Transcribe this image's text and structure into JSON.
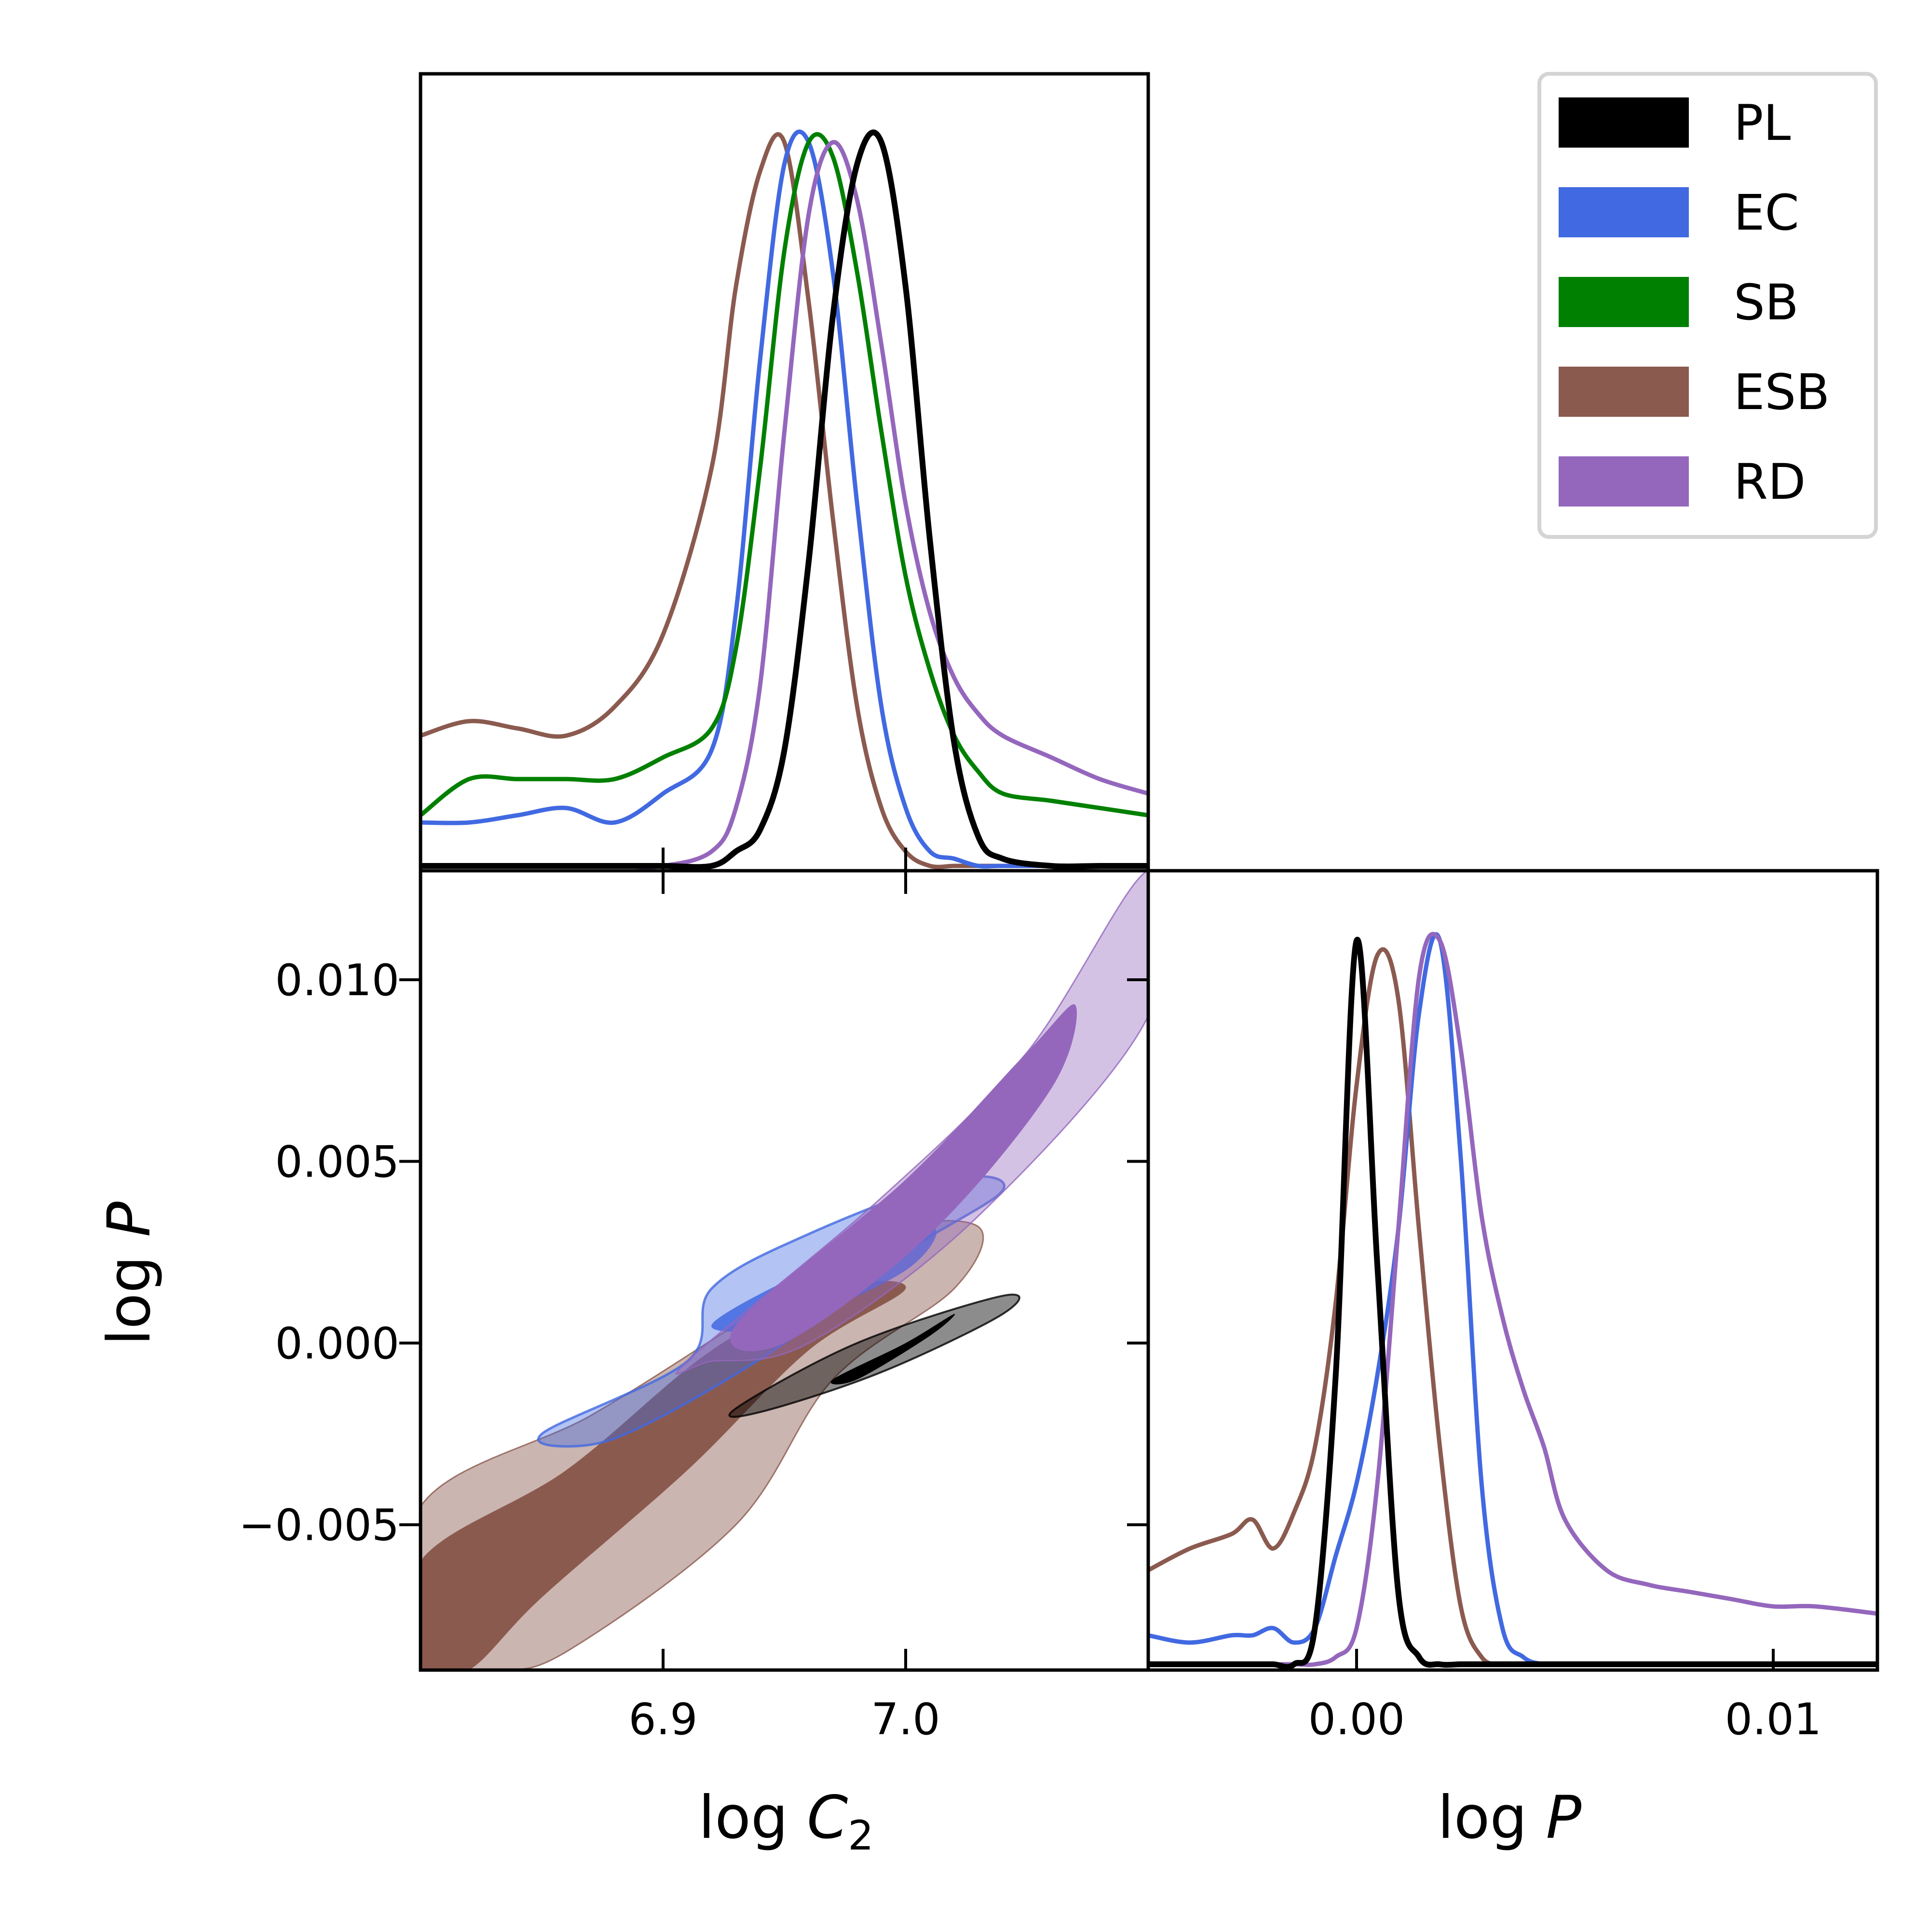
{
  "chart_data": {
    "type": "corner",
    "series": [
      {
        "name": "PL",
        "color": "#000000"
      },
      {
        "name": "EC",
        "color": "#4169e1"
      },
      {
        "name": "SB",
        "color": "#008000"
      },
      {
        "name": "ESB",
        "color": "#8b5a4f"
      },
      {
        "name": "RD",
        "color": "#9467bd"
      }
    ],
    "legend": {
      "placement": "top-right"
    },
    "panels": {
      "logC2_marginal": {
        "x_range": [
          6.8,
          7.1
        ],
        "x_ticks": [
          6.9,
          7.0
        ],
        "density_grid": [
          6.8,
          6.82,
          6.84,
          6.86,
          6.88,
          6.9,
          6.92,
          6.93,
          6.94,
          6.95,
          6.96,
          6.97,
          6.98,
          6.99,
          7.0,
          7.01,
          7.02,
          7.03,
          7.04,
          7.06,
          7.08,
          7.1
        ],
        "densities": {
          "PL": [
            0,
            0,
            0,
            0,
            0,
            0,
            0.0,
            0.02,
            0.05,
            0.16,
            0.42,
            0.76,
            0.97,
            1.0,
            0.8,
            0.45,
            0.17,
            0.04,
            0.01,
            0,
            0,
            0
          ],
          "EC": [
            0.06,
            0.06,
            0.07,
            0.08,
            0.06,
            0.1,
            0.16,
            0.35,
            0.7,
            0.97,
            1.0,
            0.82,
            0.5,
            0.22,
            0.08,
            0.02,
            0.01,
            0,
            0,
            0,
            0,
            0
          ],
          "SB": [
            0.07,
            0.12,
            0.12,
            0.12,
            0.12,
            0.15,
            0.19,
            0.3,
            0.55,
            0.85,
            1.0,
            0.98,
            0.82,
            0.6,
            0.4,
            0.27,
            0.18,
            0.13,
            0.1,
            0.09,
            0.08,
            0.07
          ],
          "ESB": [
            0.18,
            0.2,
            0.19,
            0.18,
            0.22,
            0.32,
            0.55,
            0.8,
            0.96,
            1.0,
            0.78,
            0.48,
            0.22,
            0.08,
            0.02,
            0.0,
            0,
            0,
            0,
            0,
            0,
            0
          ],
          "RD": [
            0,
            0,
            0,
            0,
            0,
            0.0,
            0.02,
            0.08,
            0.25,
            0.6,
            0.9,
            1.0,
            0.92,
            0.72,
            0.5,
            0.35,
            0.26,
            0.21,
            0.18,
            0.15,
            0.12,
            0.1
          ]
        }
      },
      "logP_marginal": {
        "x_range": [
          -0.005,
          0.0125
        ],
        "x_ticks": [
          0.0,
          0.01
        ],
        "x_tick_labels": [
          "0.00",
          "0.01"
        ],
        "xlabel": "log P",
        "density_grid": [
          -0.005,
          -0.004,
          -0.003,
          -0.0025,
          -0.002,
          -0.0015,
          -0.001,
          -0.0005,
          0.0,
          0.0005,
          0.001,
          0.0015,
          0.002,
          0.0025,
          0.003,
          0.0035,
          0.004,
          0.0045,
          0.005,
          0.006,
          0.007,
          0.008,
          0.009,
          0.01,
          0.011,
          0.0125
        ],
        "densities": {
          "PL": [
            0,
            0,
            0,
            0,
            0,
            0,
            0.05,
            0.4,
            1.0,
            0.55,
            0.1,
            0.01,
            0,
            0,
            0,
            0,
            0,
            0,
            0,
            0,
            0,
            0,
            0,
            0,
            0,
            0
          ],
          "EC": [
            0.04,
            0.03,
            0.04,
            0.04,
            0.05,
            0.03,
            0.05,
            0.15,
            0.25,
            0.4,
            0.6,
            0.9,
            1.0,
            0.7,
            0.25,
            0.05,
            0.01,
            0,
            0,
            0,
            0,
            0,
            0,
            0,
            0,
            0
          ],
          "ESB": [
            0.13,
            0.16,
            0.18,
            0.2,
            0.16,
            0.21,
            0.3,
            0.5,
            0.8,
            0.98,
            0.92,
            0.6,
            0.3,
            0.08,
            0.01,
            0,
            0,
            0,
            0,
            0,
            0,
            0,
            0,
            0,
            0,
            0
          ],
          "RD": [
            0,
            0,
            0,
            0,
            0,
            0,
            0,
            0.01,
            0.05,
            0.25,
            0.6,
            0.95,
            1.0,
            0.85,
            0.62,
            0.48,
            0.38,
            0.3,
            0.2,
            0.13,
            0.11,
            0.1,
            0.09,
            0.08,
            0.08,
            0.07
          ]
        }
      },
      "joint": {
        "x_range": [
          6.8,
          7.1
        ],
        "y_range": [
          -0.009,
          0.013
        ],
        "x_ticks": [
          6.9,
          7.0
        ],
        "x_tick_labels": [
          "6.9",
          "7.0"
        ],
        "y_ticks": [
          -0.005,
          0.0,
          0.005,
          0.01
        ],
        "y_tick_labels": [
          "−0.005",
          "0.000",
          "0.005",
          "0.010"
        ],
        "xlabel": "log C2",
        "ylabel": "log P",
        "contours": [
          {
            "series": "ESB",
            "level": "outer",
            "points": [
              [
                6.8,
                -0.0045
              ],
              [
                6.87,
                -0.002
              ],
              [
                6.93,
                0.0005
              ],
              [
                6.99,
                0.003
              ],
              [
                7.03,
                0.0032
              ],
              [
                7.02,
                0.0015
              ],
              [
                6.97,
                -0.001
              ],
              [
                6.93,
                -0.005
              ],
              [
                6.86,
                -0.0085
              ],
              [
                6.83,
                -0.009
              ],
              [
                6.8,
                -0.009
              ]
            ]
          },
          {
            "series": "ESB",
            "level": "inner",
            "points": [
              [
                6.8,
                -0.006
              ],
              [
                6.86,
                -0.0035
              ],
              [
                6.92,
                -0.0002
              ],
              [
                6.97,
                0.0015
              ],
              [
                7.0,
                0.0015
              ],
              [
                6.96,
                -0.0002
              ],
              [
                6.91,
                -0.0035
              ],
              [
                6.85,
                -0.007
              ],
              [
                6.82,
                -0.009
              ],
              [
                6.8,
                -0.009
              ]
            ]
          },
          {
            "series": "EC",
            "level": "outer",
            "points": [
              [
                6.85,
                -0.0025
              ],
              [
                6.91,
                -0.0005
              ],
              [
                6.92,
                0.0015
              ],
              [
                6.96,
                0.003
              ],
              [
                7.02,
                0.0045
              ],
              [
                7.04,
                0.0042
              ],
              [
                7.0,
                0.0025
              ],
              [
                6.95,
                0.0
              ],
              [
                6.9,
                -0.002
              ],
              [
                6.87,
                -0.0028
              ]
            ]
          },
          {
            "series": "EC",
            "level": "inner",
            "points": [
              [
                6.92,
                0.0005
              ],
              [
                6.96,
                0.002
              ],
              [
                7.01,
                0.0032
              ],
              [
                7.0,
                0.002
              ],
              [
                6.95,
                0.0005
              ]
            ]
          },
          {
            "series": "RD",
            "level": "outer",
            "points": [
              [
                6.91,
                -0.0005
              ],
              [
                6.99,
                0.004
              ],
              [
                7.05,
                0.008
              ],
              [
                7.1,
                0.013
              ],
              [
                7.1,
                0.009
              ],
              [
                7.03,
                0.0035
              ],
              [
                6.96,
                0.0
              ],
              [
                6.92,
                -0.0005
              ]
            ]
          },
          {
            "series": "RD",
            "level": "inner",
            "points": [
              [
                6.93,
                0.0005
              ],
              [
                7.0,
                0.0045
              ],
              [
                7.05,
                0.008
              ],
              [
                7.07,
                0.0093
              ],
              [
                7.06,
                0.007
              ],
              [
                7.01,
                0.003
              ],
              [
                6.95,
                0.0
              ]
            ]
          },
          {
            "series": "PL",
            "level": "outer",
            "points": [
              [
                6.93,
                -0.0018
              ],
              [
                6.98,
                0.0
              ],
              [
                7.04,
                0.0013
              ],
              [
                7.04,
                0.0008
              ],
              [
                6.99,
                -0.0008
              ],
              [
                6.94,
                -0.0019
              ]
            ]
          },
          {
            "series": "PL",
            "level": "inner",
            "points": [
              [
                6.97,
                -0.001
              ],
              [
                7.0,
                0.0
              ],
              [
                7.02,
                0.0008
              ],
              [
                7.01,
                0.0002
              ],
              [
                6.98,
                -0.001
              ]
            ]
          }
        ]
      }
    }
  }
}
